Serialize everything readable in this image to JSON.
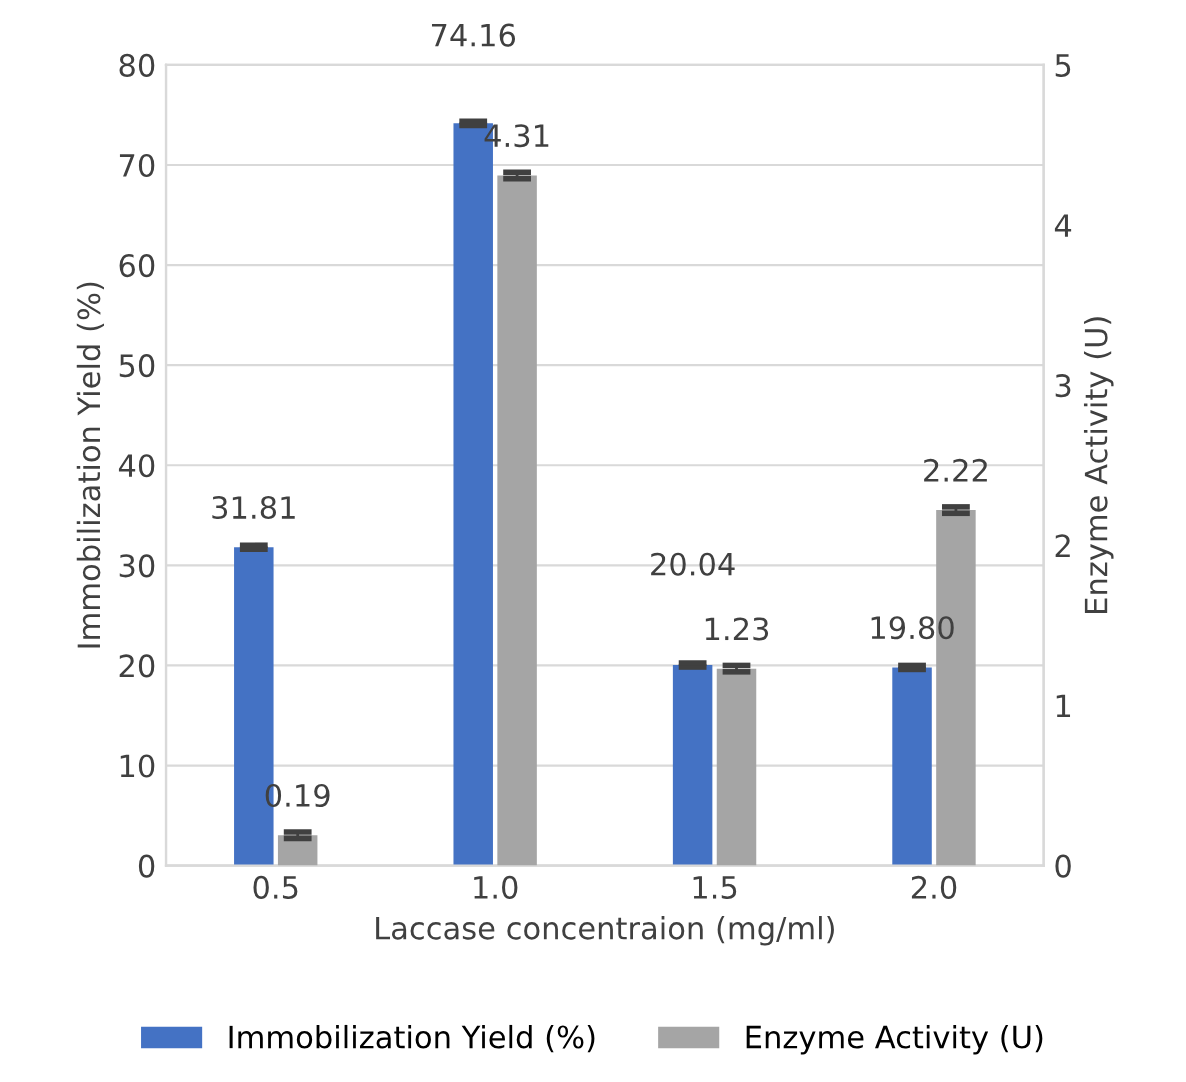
{
  "chart_data": {
    "type": "bar",
    "categories": [
      "0.5",
      "1.0",
      "1.5",
      "2.0"
    ],
    "xlabel": "Laccase concentraion (mg/ml)",
    "ylabel": "Immobilization Yield (%)",
    "y2label": "Enzyme Activity (U)",
    "series": [
      {
        "name": "Immobilization Yield (%)",
        "color": "#4472c4",
        "values": [
          31.81,
          74.16,
          20.04,
          19.8
        ],
        "value_labels": [
          "31.81",
          "74.16",
          "20.04",
          "19.80"
        ],
        "errors": [
          0.2,
          0.2,
          0.2,
          0.2
        ]
      },
      {
        "name": "Enzyme Activity (U)",
        "color": "#a5a5a5",
        "axis": "y2",
        "values": [
          0.19,
          4.31,
          1.23,
          2.22
        ],
        "value_labels": [
          "0.19",
          "4.31",
          "1.23",
          "2.22"
        ],
        "errors": [
          0.02,
          0.02,
          0.02,
          0.02
        ]
      }
    ],
    "ylim": [
      0,
      80
    ],
    "yticks": [
      0,
      10,
      20,
      30,
      40,
      50,
      60,
      70,
      80
    ],
    "y2lim": [
      0,
      5
    ],
    "y2ticks": [
      0,
      1,
      2,
      3,
      4,
      5
    ],
    "grid": "y",
    "legend": "bottom"
  }
}
